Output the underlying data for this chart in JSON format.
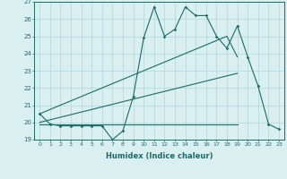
{
  "xlabel": "Humidex (Indice chaleur)",
  "x_values": [
    0,
    1,
    2,
    3,
    4,
    5,
    6,
    7,
    8,
    9,
    10,
    11,
    12,
    13,
    14,
    15,
    16,
    17,
    18,
    19,
    20,
    21,
    22,
    23
  ],
  "jagged_line": [
    20.5,
    19.9,
    19.8,
    19.8,
    19.8,
    19.8,
    19.8,
    19.0,
    19.5,
    21.5,
    24.9,
    26.7,
    25.0,
    25.4,
    26.7,
    26.2,
    26.2,
    25.0,
    24.3,
    25.6,
    23.8,
    22.1,
    19.9,
    19.6
  ],
  "upper_slope": [
    20.5,
    20.75,
    21.0,
    21.25,
    21.5,
    21.75,
    22.0,
    22.25,
    22.5,
    22.75,
    23.0,
    23.25,
    23.5,
    23.75,
    24.0,
    24.25,
    24.5,
    24.75,
    25.0,
    23.8,
    null,
    null,
    null,
    null
  ],
  "lower_slope": [
    20.0,
    20.15,
    20.3,
    20.45,
    20.6,
    20.75,
    20.9,
    21.05,
    21.2,
    21.35,
    21.5,
    21.65,
    21.8,
    21.95,
    22.1,
    22.25,
    22.4,
    22.55,
    22.7,
    22.85,
    null,
    null,
    null,
    null
  ],
  "flat_line": [
    19.9,
    19.9,
    19.9,
    19.9,
    19.9,
    19.9,
    19.9,
    19.9,
    19.9,
    19.9,
    19.9,
    19.9,
    19.9,
    19.9,
    19.9,
    19.9,
    19.9,
    19.9,
    19.9,
    19.9,
    null,
    null,
    null,
    null
  ],
  "line_color": "#1a6b6b",
  "bg_color": "#d9eff0",
  "grid_color": "#b0d8da",
  "ylim": [
    19,
    27
  ],
  "xlim": [
    -0.5,
    23.5
  ]
}
